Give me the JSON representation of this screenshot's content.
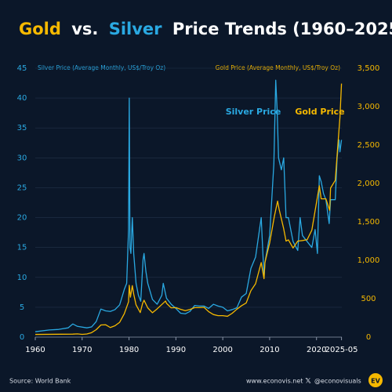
{
  "chart_data": {
    "type": "line",
    "title_parts": [
      "Gold",
      "vs.",
      "Silver",
      "Price Trends (1960–2025)"
    ],
    "ylabel": "Silver Price (Average Monthly, US$/Troy Oz)",
    "y2label": "Gold Price (Average Monthly, US$/Troy Oz)",
    "xlim": [
      1960,
      2025.4
    ],
    "xticks": [
      1960,
      1970,
      1980,
      1990,
      2000,
      2010,
      2020,
      {
        "value": 2025.33,
        "label": "2025-05"
      }
    ],
    "ylim": [
      0,
      45
    ],
    "yticks": [
      0,
      5,
      10,
      15,
      20,
      25,
      30,
      35,
      40,
      45
    ],
    "y2lim": [
      0,
      3500
    ],
    "y2ticks": [
      0,
      500,
      {
        "value": 1000,
        "label": "1,000"
      },
      {
        "value": 1500,
        "label": "1,500"
      },
      {
        "value": 2000,
        "label": "2,000"
      },
      {
        "value": 2500,
        "label": "2,500"
      },
      {
        "value": 3000,
        "label": "3,000"
      },
      {
        "value": 3500,
        "label": "3,500"
      }
    ],
    "grid": true,
    "series": [
      {
        "name": "Silver Price",
        "color": "#2aa9e2",
        "axis": "y",
        "x": [
          1960,
          1963,
          1965,
          1967,
          1968,
          1969,
          1971,
          1972,
          1973,
          1974,
          1975,
          1976,
          1977,
          1978,
          1979,
          1979.5,
          1979.9,
          1980.05,
          1980.2,
          1980.4,
          1980.7,
          1981,
          1981.5,
          1982,
          1982.5,
          1983,
          1983.2,
          1983.6,
          1984,
          1985,
          1986,
          1987,
          1987.3,
          1988,
          1989,
          1990,
          1991,
          1992,
          1993,
          1994,
          1995,
          1996,
          1997,
          1998,
          1999,
          2000,
          2001,
          2002,
          2003,
          2004,
          2005,
          2006,
          2007,
          2008.2,
          2008.8,
          2009,
          2010,
          2010.9,
          2011.3,
          2011.6,
          2011.9,
          2012.5,
          2013,
          2013.5,
          2014,
          2015,
          2016,
          2016.5,
          2017,
          2018,
          2019,
          2019.7,
          2020.2,
          2020.6,
          2021,
          2021.5,
          2022,
          2022.7,
          2023,
          2024,
          2024.4,
          2024.8,
          2025,
          2025.33
        ],
        "values": [
          0.91,
          1.2,
          1.29,
          1.55,
          2.2,
          1.8,
          1.55,
          1.7,
          2.6,
          4.7,
          4.4,
          4.3,
          4.6,
          5.4,
          8,
          9,
          18,
          40,
          15,
          14,
          20,
          14,
          9,
          7,
          6,
          13,
          14,
          11,
          9,
          6.3,
          5.5,
          7,
          9,
          6.5,
          5.5,
          4.8,
          4,
          3.9,
          4.3,
          5.3,
          5.2,
          5.2,
          4.8,
          5.5,
          5.2,
          5,
          4.4,
          4.6,
          4.9,
          6.7,
          7.3,
          11.5,
          13.4,
          20,
          10,
          12.5,
          17,
          29,
          43,
          38,
          30,
          28,
          30,
          20,
          20,
          16,
          14.5,
          20,
          17,
          16,
          15,
          18,
          14,
          27,
          26,
          24,
          23,
          19,
          23,
          23,
          30,
          33,
          31,
          33
        ]
      },
      {
        "name": "Gold Price",
        "color": "#f6b900",
        "axis": "y2",
        "x": [
          1960,
          1968,
          1969,
          1970,
          1971,
          1972,
          1973,
          1974,
          1975,
          1976,
          1977,
          1978,
          1979,
          1979.9,
          1980.05,
          1980.3,
          1980.7,
          1981,
          1981.5,
          1982.4,
          1982.9,
          1983.2,
          1984,
          1985,
          1986,
          1987.8,
          1988,
          1989,
          1990,
          1991,
          1992,
          1993,
          1994,
          1995,
          1996,
          1997,
          1998,
          1999,
          2000,
          2001,
          2002,
          2003,
          2004,
          2005,
          2006,
          2007,
          2008.2,
          2008.8,
          2009,
          2010,
          2011,
          2011.7,
          2012,
          2013,
          2013.5,
          2014,
          2015,
          2016,
          2017,
          2018,
          2019,
          2020.6,
          2021,
          2022,
          2022.8,
          2023,
          2024,
          2024.8,
          2025,
          2025.33
        ],
        "values": [
          35,
          39,
          42,
          36,
          41,
          58,
          97,
          158,
          161,
          125,
          148,
          193,
          306,
          460,
          675,
          520,
          670,
          560,
          420,
          320,
          440,
          480,
          380,
          317,
          368,
          470,
          440,
          381,
          384,
          362,
          344,
          360,
          384,
          384,
          388,
          331,
          294,
          279,
          279,
          271,
          310,
          363,
          409,
          445,
          604,
          695,
          970,
          760,
          972,
          1225,
          1570,
          1770,
          1670,
          1410,
          1250,
          1266,
          1160,
          1250,
          1257,
          1268,
          1392,
          1970,
          1800,
          1800,
          1650,
          1940,
          2040,
          2700,
          2860,
          3300
        ]
      }
    ]
  },
  "footer": {
    "source": "Source: World Bank",
    "website": "www.econovis.net",
    "handle": "@econovisuals",
    "logo": "EV"
  }
}
